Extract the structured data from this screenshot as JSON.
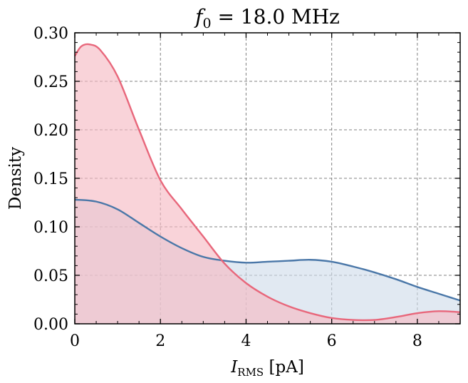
{
  "chart_data": {
    "type": "area",
    "title": {
      "var": "f",
      "sub": "0",
      "rest": " = 18.0 MHz"
    },
    "xlabel": {
      "var": "I",
      "sub": "RMS",
      "rest": " [pA]"
    },
    "ylabel": "Density",
    "xlim": [
      0,
      9
    ],
    "ylim": [
      0,
      0.3
    ],
    "xticks": [
      0,
      2,
      4,
      6,
      8
    ],
    "xtick_labels": [
      "0",
      "2",
      "4",
      "6",
      "8"
    ],
    "yticks": [
      0,
      0.05,
      0.1,
      0.15,
      0.2,
      0.25,
      0.3
    ],
    "ytick_labels": [
      "0.00",
      "0.05",
      "0.10",
      "0.15",
      "0.20",
      "0.25",
      "0.30"
    ],
    "grid": true,
    "legend": "none",
    "series": [
      {
        "color": "#4a77a8",
        "fill": "#cfdcea",
        "points": [
          [
            0,
            0.128
          ],
          [
            0.5,
            0.126
          ],
          [
            1,
            0.118
          ],
          [
            1.5,
            0.104
          ],
          [
            2,
            0.09
          ],
          [
            2.5,
            0.078
          ],
          [
            3,
            0.069
          ],
          [
            3.5,
            0.065
          ],
          [
            4,
            0.063
          ],
          [
            4.5,
            0.064
          ],
          [
            5,
            0.065
          ],
          [
            5.5,
            0.066
          ],
          [
            6,
            0.064
          ],
          [
            6.5,
            0.059
          ],
          [
            7,
            0.053
          ],
          [
            7.5,
            0.046
          ],
          [
            8,
            0.038
          ],
          [
            8.5,
            0.031
          ],
          [
            9,
            0.024
          ]
        ]
      },
      {
        "color": "#e8677b",
        "fill": "#f6b8c2",
        "points": [
          [
            0,
            0.276
          ],
          [
            0.15,
            0.286
          ],
          [
            0.35,
            0.288
          ],
          [
            0.6,
            0.282
          ],
          [
            1,
            0.255
          ],
          [
            1.5,
            0.2
          ],
          [
            2,
            0.148
          ],
          [
            2.5,
            0.118
          ],
          [
            3,
            0.09
          ],
          [
            3.5,
            0.062
          ],
          [
            4,
            0.042
          ],
          [
            4.5,
            0.028
          ],
          [
            5,
            0.018
          ],
          [
            5.5,
            0.011
          ],
          [
            6,
            0.006
          ],
          [
            6.5,
            0.004
          ],
          [
            7,
            0.004
          ],
          [
            7.5,
            0.007
          ],
          [
            8,
            0.011
          ],
          [
            8.5,
            0.013
          ],
          [
            9,
            0.012
          ]
        ]
      }
    ]
  }
}
